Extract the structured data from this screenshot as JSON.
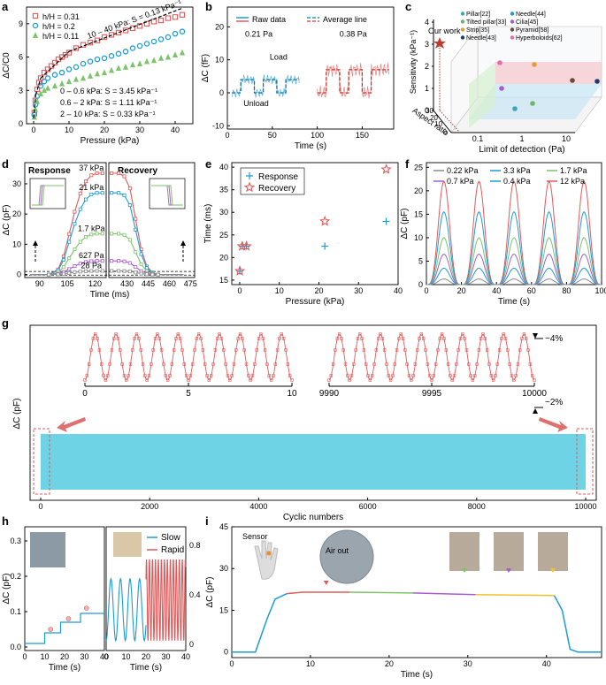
{
  "panel_labels": {
    "a": "a",
    "b": "b",
    "c": "c",
    "d": "d",
    "e": "e",
    "f": "f",
    "g": "g",
    "h": "h",
    "i": "i"
  },
  "colors": {
    "red": "#e05a5a",
    "blue": "#1c9bd6",
    "green": "#7cc36a",
    "purple": "#a85ad2",
    "gray": "#8a8a8a",
    "cyan": "#6fd3e6",
    "yellow": "#f2c12e"
  },
  "chart_data": [
    {
      "id": "a",
      "type": "scatter",
      "xlabel": "Pressure (kPa)",
      "ylabel": "ΔC/C0",
      "xlim": [
        -2,
        45
      ],
      "ylim": [
        0,
        10.5
      ],
      "xticks": [
        "0",
        "10",
        "20",
        "30",
        "40"
      ],
      "yticks": [
        "0",
        "3",
        "6",
        "9"
      ],
      "series": [
        {
          "name": "h/H = 0.31",
          "color": "#e05a5a",
          "marker": "square",
          "x": [
            0.2,
            0.5,
            1,
            1.5,
            2,
            3,
            4,
            5,
            6,
            7,
            8,
            9,
            10,
            12,
            14,
            16,
            18,
            20,
            22,
            24,
            26,
            28,
            30,
            32,
            34,
            36,
            38,
            40,
            42
          ],
          "y": [
            1.0,
            2.1,
            3.1,
            3.7,
            4.1,
            4.6,
            4.9,
            5.2,
            5.5,
            5.8,
            6.0,
            6.2,
            6.4,
            6.8,
            7.1,
            7.3,
            7.5,
            7.8,
            8.0,
            8.2,
            8.4,
            8.6,
            8.8,
            9.0,
            9.2,
            9.3,
            9.5,
            9.6,
            9.8
          ]
        },
        {
          "name": "h/H = 0.2",
          "color": "#1c9bd6",
          "marker": "circle",
          "x": [
            0.2,
            0.5,
            1,
            2,
            3,
            4,
            6,
            8,
            10,
            12,
            14,
            16,
            18,
            20,
            22,
            24,
            26,
            28,
            30,
            32,
            34,
            36,
            38,
            40,
            42
          ],
          "y": [
            0.8,
            1.7,
            2.5,
            3.4,
            3.8,
            4.1,
            4.4,
            4.6,
            4.9,
            5.1,
            5.4,
            5.6,
            5.8,
            5.9,
            6.1,
            6.3,
            6.5,
            6.8,
            7.0,
            7.2,
            7.4,
            7.6,
            7.8,
            8.1,
            8.3
          ]
        },
        {
          "name": "h/H = 0.11",
          "color": "#7cc36a",
          "marker": "triangle",
          "x": [
            0.2,
            0.5,
            1,
            2,
            3,
            4,
            6,
            8,
            10,
            12,
            14,
            16,
            18,
            20,
            22,
            24,
            26,
            28,
            30,
            32,
            34,
            36,
            38,
            40,
            42
          ],
          "y": [
            0.6,
            1.3,
            2.0,
            2.7,
            3.0,
            3.2,
            3.4,
            3.6,
            3.8,
            4.0,
            4.1,
            4.3,
            4.5,
            4.6,
            4.8,
            5.0,
            5.1,
            5.3,
            5.4,
            5.6,
            5.7,
            5.9,
            6.0,
            6.2,
            6.4
          ]
        }
      ],
      "annotations": {
        "fit1": "0 – 0.6 kPa: S = 3.45 kPa⁻¹",
        "fit2": "0.6 – 2 kPa: S = 1.11 kPa⁻¹",
        "fit3": "2 – 10 kPa: S = 0.33 kPa⁻¹",
        "fit4": "10 – 40 kPa: S = 0.13 kPa⁻¹"
      }
    },
    {
      "id": "b",
      "type": "line",
      "xlabel": "Time (s)",
      "ylabel": "ΔC (fF)",
      "xlim": [
        0,
        185
      ],
      "ylim": [
        -11,
        26
      ],
      "xticks": [
        "0",
        "50",
        "100",
        "150"
      ],
      "yticks": [
        "-10",
        "0",
        "10",
        "20"
      ],
      "legend": {
        "raw": "Raw data",
        "avg": "Average line"
      },
      "labels": {
        "p1": "0.21 Pa",
        "p2": "0.38 Pa",
        "load": "Load",
        "unload": "Unload"
      },
      "series": [
        {
          "name": "0.21 Pa",
          "color": "#1c9bd6",
          "x": [
            5,
            15,
            15,
            30,
            30,
            40,
            40,
            55,
            55,
            65,
            65,
            80
          ],
          "y": [
            0,
            0,
            4,
            4,
            0,
            0,
            4,
            4,
            0,
            0,
            4,
            4
          ]
        },
        {
          "name": "0.38 Pa",
          "color": "#e05a5a",
          "x": [
            100,
            110,
            110,
            125,
            125,
            135,
            135,
            150,
            150,
            160,
            160,
            180
          ],
          "y": [
            0,
            0,
            7,
            7,
            0,
            0,
            7,
            7,
            0,
            0,
            7,
            7
          ]
        }
      ]
    },
    {
      "id": "c",
      "type": "scatter",
      "xlabel": "Limit of detection (Pa)",
      "ylabel": "Sensitivity (kPa⁻¹)",
      "zlabel": "Aspect ratio",
      "xticks": [
        "0.1",
        "1",
        "10"
      ],
      "yticks": [
        "0",
        "1",
        "2",
        "3",
        "4"
      ],
      "zticks": [
        "0",
        "10",
        "20",
        "30"
      ],
      "our_work": "Our work",
      "legend": [
        "Pillar[22]",
        "Tilted pillar[33]",
        "Strip[35]",
        "Needle[43]",
        "Needle[44]",
        "Cilia[45]",
        "Pyramid[58]",
        "Hyperboloids[62]"
      ]
    },
    {
      "id": "d",
      "type": "line",
      "xlabel": "Time (ms)",
      "ylabel": "ΔC (pF)",
      "ylim": [
        -1,
        37
      ],
      "titles": {
        "response": "Response",
        "recovery": "Recovery"
      },
      "xticks_left": [
        "90",
        "105",
        "120"
      ],
      "xticks_right": [
        "430",
        "445",
        "460",
        "475"
      ],
      "yticks": [
        "0",
        "10",
        "20",
        "30"
      ],
      "series": [
        {
          "name": "37 kPa",
          "color": "#e05a5a",
          "peak": 33.5
        },
        {
          "name": "21 kPa",
          "color": "#1c9bd6",
          "peak": 27
        },
        {
          "name": "1.7 kPa",
          "color": "#7cc36a",
          "peak": 13.5
        },
        {
          "name": "627 Pa",
          "color": "#a85ad2",
          "peak": 4.5
        },
        {
          "name": "28 Pa",
          "color": "#8a8a8a",
          "peak": 1.2
        }
      ]
    },
    {
      "id": "e",
      "type": "scatter",
      "xlabel": "Pressure (kPa)",
      "ylabel": "Time (ms)",
      "xlim": [
        -2,
        40
      ],
      "ylim": [
        14,
        41
      ],
      "xticks": [
        "0",
        "10",
        "20",
        "30",
        "40"
      ],
      "yticks": [
        "15",
        "20",
        "25",
        "30",
        "35",
        "40"
      ],
      "series": [
        {
          "name": "Response",
          "color": "#1c9bd6",
          "marker": "plus",
          "x": [
            0.03,
            0.63,
            1.7,
            21.5,
            37
          ],
          "y": [
            17,
            22.5,
            22.5,
            22.5,
            28
          ]
        },
        {
          "name": "Recovery",
          "color": "#e05a5a",
          "marker": "star",
          "x": [
            0.03,
            0.63,
            1.7,
            21.5,
            37
          ],
          "y": [
            17,
            22.5,
            22.5,
            28,
            39.5
          ]
        }
      ]
    },
    {
      "id": "f",
      "type": "line",
      "xlabel": "Time (s)",
      "ylabel": "ΔC (pF)",
      "xlim": [
        0,
        100
      ],
      "ylim": [
        0,
        26
      ],
      "xticks": [
        "0",
        "20",
        "40",
        "60",
        "80",
        "100"
      ],
      "yticks": [
        "0",
        "5",
        "10",
        "15",
        "20",
        "25"
      ],
      "series": [
        {
          "name": "0.22 kPa",
          "color": "#8a8a8a",
          "peak": 1.2
        },
        {
          "name": "0.4 kPa",
          "color": "#1c9bd6",
          "peak": 3.5
        },
        {
          "name": "0.7 kPa",
          "color": "#a85ad2",
          "peak": 6.5
        },
        {
          "name": "1.7 kPa",
          "color": "#7cc36a",
          "peak": 10
        },
        {
          "name": "3.3 kPa",
          "color": "#1c9bd6",
          "peak": 15.5
        },
        {
          "name": "12 kPa",
          "color": "#e05a5a",
          "peak": 22
        }
      ]
    },
    {
      "id": "g",
      "type": "area",
      "xlabel": "Cyclic numbers",
      "ylabel": "ΔC (pF)",
      "xlim": [
        0,
        10000
      ],
      "xticks": [
        "0",
        "2000",
        "4000",
        "6000",
        "8000",
        "10000"
      ],
      "inset_left_xticks": [
        "0",
        "5",
        "10"
      ],
      "inset_right_xticks": [
        "9990",
        "9995",
        "10000"
      ],
      "labels": {
        "drift_top": "~4%",
        "drift_bottom": "~2%"
      },
      "color": "#6fd3e6"
    },
    {
      "id": "h",
      "type": "line",
      "xlabel": "Time (s)",
      "ylabel": "ΔC (pF)",
      "xticks": [
        "0",
        "10",
        "20",
        "30",
        "40"
      ],
      "yticks_left": [
        "0.0",
        "0.1",
        "0.2",
        "0.3"
      ],
      "yticks_right": [
        "0",
        "0.4",
        "0.8"
      ],
      "legend": {
        "slow": "Slow",
        "rapid": "Rapid"
      },
      "steps": {
        "x": [
          0,
          10,
          10,
          18,
          18,
          28,
          28,
          40
        ],
        "y": [
          0.01,
          0.01,
          0.04,
          0.04,
          0.07,
          0.07,
          0.095,
          0.095
        ]
      }
    },
    {
      "id": "i",
      "type": "line",
      "xlabel": "Time (s)",
      "ylabel": "ΔC (pF)",
      "xlim": [
        0,
        47
      ],
      "ylim": [
        -2,
        45
      ],
      "xticks": [
        "0",
        "10",
        "20",
        "30",
        "40"
      ],
      "yticks": [
        "0",
        "15",
        "30",
        "45"
      ],
      "labels": {
        "sensor": "Sensor",
        "air_out": "Air out"
      },
      "plateau": 21.5
    }
  ]
}
